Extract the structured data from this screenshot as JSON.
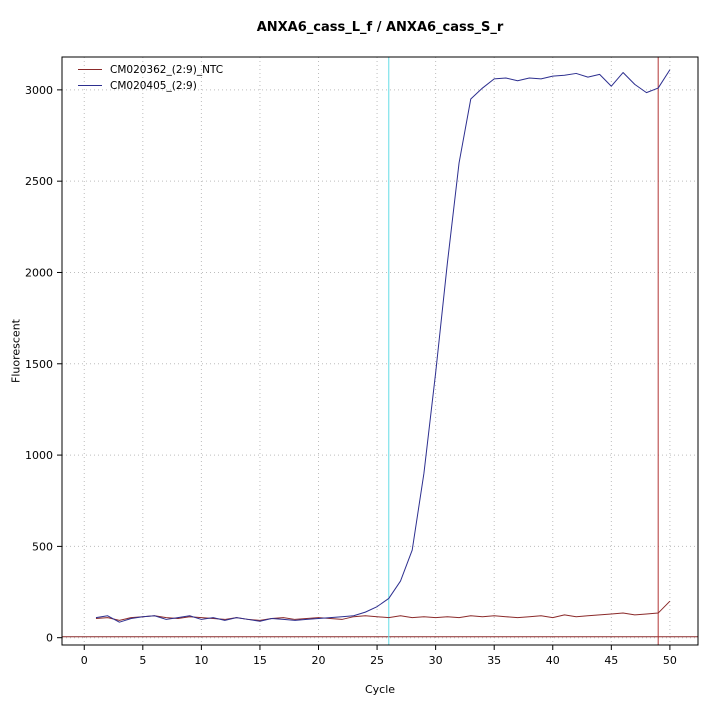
{
  "chart_data": {
    "type": "line",
    "title": "ANXA6_cass_L_f / ANXA6_cass_S_r",
    "xlabel": "Cycle",
    "ylabel": "Fluorescent",
    "xlim": [
      -1.9,
      52.4
    ],
    "ylim": [
      -40,
      3180
    ],
    "xticks": [
      0,
      5,
      10,
      15,
      20,
      25,
      30,
      35,
      40,
      45,
      50
    ],
    "yticks": [
      0,
      500,
      1000,
      1500,
      2000,
      2500,
      3000
    ],
    "grid": "dotted",
    "legend_position": "top-left",
    "colors": {
      "grid": "#bdbdbd",
      "axis": "#000000"
    },
    "x": [
      1,
      2,
      3,
      4,
      5,
      6,
      7,
      8,
      9,
      10,
      11,
      12,
      13,
      14,
      15,
      16,
      17,
      18,
      19,
      20,
      21,
      22,
      23,
      24,
      25,
      26,
      27,
      28,
      29,
      30,
      31,
      32,
      33,
      34,
      35,
      36,
      37,
      38,
      39,
      40,
      41,
      42,
      43,
      44,
      45,
      46,
      47,
      48,
      49,
      50
    ],
    "series": [
      {
        "name": "CM020362_(2:9)_NTC",
        "color": "#8b2a2a",
        "values": [
          105,
          110,
          95,
          110,
          115,
          120,
          110,
          105,
          115,
          110,
          105,
          100,
          110,
          100,
          95,
          105,
          110,
          100,
          105,
          110,
          105,
          100,
          115,
          120,
          115,
          110,
          120,
          110,
          115,
          110,
          115,
          110,
          120,
          115,
          120,
          115,
          110,
          115,
          120,
          110,
          125,
          115,
          120,
          125,
          130,
          135,
          125,
          130,
          135,
          200
        ]
      },
      {
        "name": "CM020405_(2:9)",
        "color": "#2d2f8f",
        "values": [
          110,
          120,
          85,
          105,
          115,
          120,
          100,
          110,
          120,
          100,
          110,
          95,
          110,
          100,
          90,
          105,
          100,
          95,
          100,
          105,
          110,
          115,
          120,
          140,
          170,
          215,
          310,
          480,
          900,
          1450,
          2050,
          2600,
          2950,
          3010,
          3060,
          3065,
          3050,
          3065,
          3060,
          3075,
          3080,
          3090,
          3070,
          3085,
          3020,
          3095,
          3030,
          2985,
          3010,
          3110
        ]
      }
    ],
    "vlines": [
      {
        "x": 26,
        "color": "#63dce6",
        "name": "threshold-cycle-line"
      },
      {
        "x": 49,
        "color": "#b23535",
        "name": "end-cycle-line"
      }
    ],
    "hlines": [
      {
        "y": 5,
        "color": "#8b2a2a",
        "name": "baseline-line"
      }
    ]
  }
}
